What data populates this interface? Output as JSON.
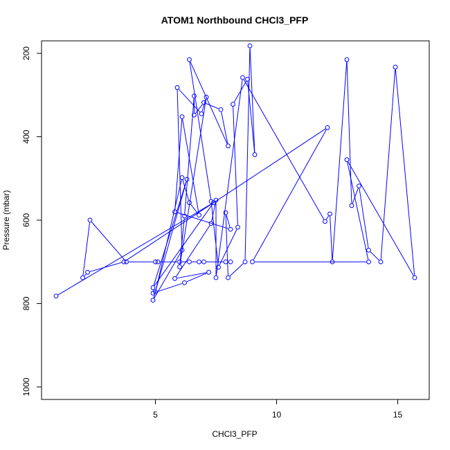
{
  "chart_data": {
    "type": "line",
    "title": "ATOM1 Northbound CHCl3_PFP",
    "xlabel": "CHCl3_PFP",
    "ylabel": "Pressure (mbar)",
    "xlim": [
      0.3,
      16.3
    ],
    "ylim": [
      1030,
      170
    ],
    "y_reversed": true,
    "x_ticks": [
      5,
      10,
      15
    ],
    "y_ticks": [
      200,
      400,
      600,
      800,
      1000
    ],
    "grid": false,
    "legend": "none",
    "series": [
      {
        "color": "#0000ff",
        "marker": "open-circle",
        "x": [
          0.9,
          7.4,
          4.9,
          6.3,
          4.9,
          6.1,
          5.9,
          6.9,
          7.1,
          6.0,
          6.2,
          6.6,
          6.6,
          7.0,
          7.7,
          8.0,
          6.4,
          7.3,
          7.6,
          8.4,
          8.2,
          8.8,
          9.1,
          8.9,
          8.7,
          8.0,
          7.9,
          8.1,
          5.8,
          6.1,
          6.8,
          6.4,
          6.1,
          5.0,
          4.9,
          6.2,
          7.2,
          5.8,
          7.3,
          7.5,
          7.5,
          8.6,
          12.0,
          12.2,
          12.3,
          12.9,
          13.1,
          13.4,
          13.8,
          14.3,
          14.9,
          15.7,
          12.9,
          13.8,
          9.0,
          12.1,
          3.7,
          2.2,
          2.0,
          2.3,
          3.8,
          5.0,
          5.1,
          6.0,
          6.4,
          6.8,
          7.0,
          7.9,
          8.1
        ],
        "y": [
          782,
          558,
          762,
          502,
          792,
          672,
          282,
          345,
          305,
          712,
          590,
          302,
          348,
          318,
          335,
          422,
          215,
          555,
          713,
          617,
          322,
          262,
          443,
          182,
          700,
          738,
          582,
          622,
          580,
          352,
          588,
          558,
          498,
          772,
          775,
          750,
          725,
          740,
          608,
          552,
          738,
          258,
          603,
          585,
          700,
          215,
          565,
          518,
          672,
          700,
          233,
          738,
          455,
          700,
          700,
          378,
          700,
          725,
          738,
          600,
          700,
          700,
          700,
          700,
          700,
          700,
          700,
          700,
          700
        ]
      }
    ]
  }
}
